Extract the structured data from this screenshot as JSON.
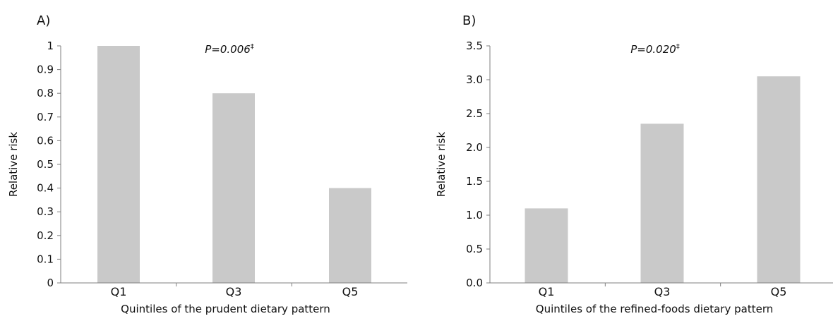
{
  "figure": {
    "panels": [
      {
        "letter": "A)",
        "pvalue": "P=0.006",
        "pvalue_mark": "‡",
        "ytick_labels": [
          "0",
          "0.1",
          "0.2",
          "0.3",
          "0.4",
          "0.5",
          "0.6",
          "0.7",
          "0.8",
          "0.9",
          "1"
        ],
        "bar_color": "#c9c9c9"
      },
      {
        "letter": "B)",
        "pvalue": "P=0.020",
        "pvalue_mark": "‡",
        "ytick_labels": [
          "0.0",
          "0.5",
          "1.0",
          "1.5",
          "2.0",
          "2.5",
          "3.0",
          "3.5"
        ],
        "bar_color": "#c9c9c9"
      }
    ]
  },
  "chart_data": [
    {
      "type": "bar",
      "categories": [
        "Q1",
        "Q3",
        "Q5"
      ],
      "values": [
        1.0,
        0.8,
        0.4
      ],
      "xlabel": "Quintiles of the prudent dietary pattern",
      "ylabel": "Relative risk",
      "ylim": [
        0,
        1
      ],
      "grid": false,
      "annotations": [
        "P=0.006‡"
      ]
    },
    {
      "type": "bar",
      "categories": [
        "Q1",
        "Q3",
        "Q5"
      ],
      "values": [
        1.1,
        2.35,
        3.05
      ],
      "xlabel": "Quintiles of the refined-foods dietary pattern",
      "ylabel": "Relative risk",
      "ylim": [
        0,
        3.5
      ],
      "grid": false,
      "annotations": [
        "P=0.020‡"
      ]
    }
  ]
}
